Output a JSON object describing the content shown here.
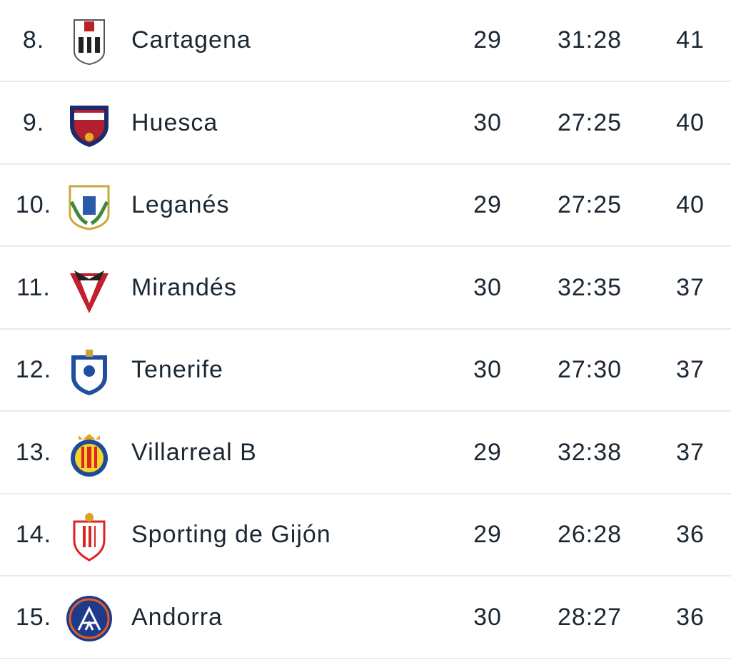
{
  "table": {
    "rows": [
      [
        "8.",
        "Cartagena",
        "29",
        "31:28",
        "41"
      ],
      [
        "9.",
        "Huesca",
        "30",
        "27:25",
        "40"
      ],
      [
        "10.",
        "Leganés",
        "29",
        "27:25",
        "40"
      ],
      [
        "11.",
        "Mirandés",
        "30",
        "32:35",
        "37"
      ],
      [
        "12.",
        "Tenerife",
        "30",
        "27:30",
        "37"
      ],
      [
        "13.",
        "Villarreal B",
        "29",
        "32:38",
        "37"
      ],
      [
        "14.",
        "Sporting de Gijón",
        "29",
        "26:28",
        "36"
      ],
      [
        "15.",
        "Andorra",
        "30",
        "28:27",
        "36"
      ]
    ]
  }
}
